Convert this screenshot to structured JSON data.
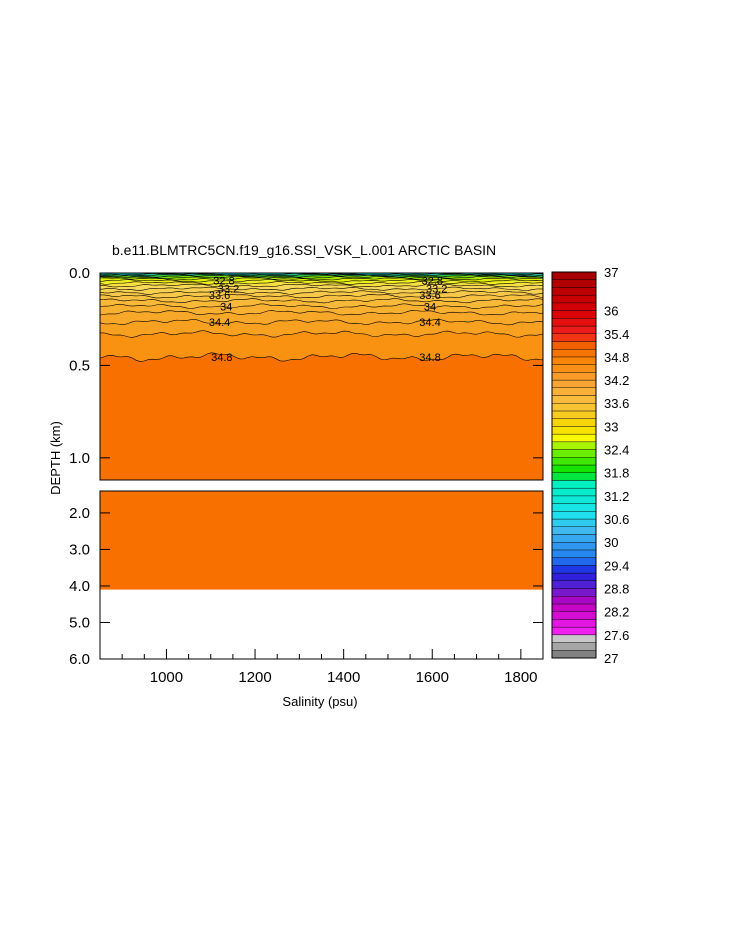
{
  "chart_data": {
    "type": "heatmap",
    "title": "b.e11.BLMTRC5CN.f19_g16.SSI_VSK_L.001 ARCTIC BASIN",
    "xlabel": "Salinity (psu)",
    "ylabel": "DEPTH (km)",
    "xlim": [
      850,
      1850
    ],
    "x_ticks": [
      "1000",
      "1200",
      "1400",
      "1600",
      "1800"
    ],
    "x_tick_values": [
      1000,
      1200,
      1400,
      1600,
      1800
    ],
    "upper_panel": {
      "ylim": [
        0.0,
        1.12
      ],
      "y_ticks": [
        "0.0",
        "0.5",
        "1.0"
      ],
      "y_tick_values": [
        0.0,
        0.5,
        1.0
      ]
    },
    "lower_panel": {
      "ylim": [
        1.4,
        6.0
      ],
      "y_ticks": [
        "2.0",
        "3.0",
        "4.0",
        "5.0",
        "6.0"
      ],
      "y_tick_values": [
        2.0,
        3.0,
        4.0,
        5.0,
        6.0
      ],
      "bottom_depth": 4.1
    },
    "fill_color_deep": "#f87000",
    "fill_color_mid": "#f89210",
    "contour_labels": [
      {
        "text": "32.8",
        "x": 1130,
        "depth": 0.04
      },
      {
        "text": "33.2",
        "x": 1140,
        "depth": 0.085
      },
      {
        "text": "33.6",
        "x": 1120,
        "depth": 0.12
      },
      {
        "text": "34",
        "x": 1135,
        "depth": 0.18
      },
      {
        "text": "34.4",
        "x": 1120,
        "depth": 0.265
      },
      {
        "text": "34.8",
        "x": 1125,
        "depth": 0.455
      },
      {
        "text": "32.8",
        "x": 1600,
        "depth": 0.04
      },
      {
        "text": "33.2",
        "x": 1610,
        "depth": 0.085
      },
      {
        "text": "33.6",
        "x": 1595,
        "depth": 0.12
      },
      {
        "text": "34",
        "x": 1595,
        "depth": 0.18
      },
      {
        "text": "34.4",
        "x": 1595,
        "depth": 0.265
      },
      {
        "text": "34.8",
        "x": 1595,
        "depth": 0.455
      }
    ],
    "colorbar": {
      "min": 27,
      "max": 37,
      "labels": [
        "37",
        "36",
        "35.4",
        "34.8",
        "34.2",
        "33.6",
        "33",
        "32.4",
        "31.8",
        "31.2",
        "30.6",
        "30",
        "29.4",
        "28.8",
        "28.2",
        "27.6",
        "27"
      ],
      "label_values": [
        37,
        36,
        35.4,
        34.8,
        34.2,
        33.6,
        33,
        32.4,
        31.8,
        31.2,
        30.6,
        30,
        29.4,
        28.8,
        28.2,
        27.6,
        27
      ]
    }
  }
}
